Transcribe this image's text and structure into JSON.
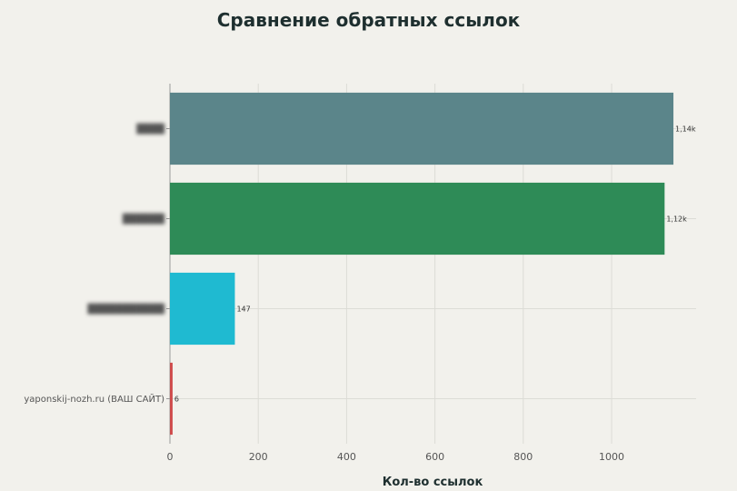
{
  "chart_data": {
    "type": "bar",
    "orientation": "horizontal",
    "title": "Сравнение обратных ссылок",
    "xlabel": "Кол-во ссылок",
    "ylabel": "",
    "xlim": [
      0,
      1200
    ],
    "xticks": [
      0,
      200,
      400,
      600,
      800,
      1000
    ],
    "grid": true,
    "categories": [
      "████",
      "██████",
      "███████████",
      "yaponskij-nozh.ru (ВАШ САЙТ)"
    ],
    "category_blurred": [
      true,
      true,
      true,
      false
    ],
    "values": [
      1140,
      1120,
      147,
      6
    ],
    "value_labels": [
      "1,14k",
      "1,12k",
      "147",
      "6"
    ],
    "colors": [
      "#5b858a",
      "#2e8b57",
      "#1fbad1",
      "#cf4b4b"
    ]
  }
}
